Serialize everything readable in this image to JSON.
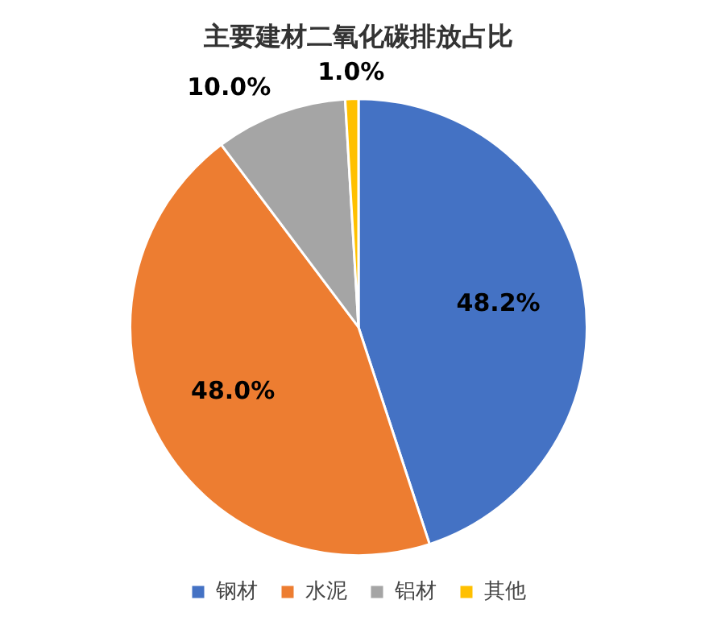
{
  "chart_data": {
    "type": "pie",
    "title": "主要建材二氧化碳排放占比",
    "categories": [
      "钢材",
      "水泥",
      "铝材",
      "其他"
    ],
    "values": [
      48.2,
      48.0,
      10.0,
      1.0
    ],
    "colors": [
      "#4472c4",
      "#ed7d31",
      "#a5a5a5",
      "#ffc000"
    ],
    "value_labels": [
      "48.2%",
      "48.0%",
      "10.0%",
      "1.0%"
    ],
    "legend": "bottom"
  }
}
